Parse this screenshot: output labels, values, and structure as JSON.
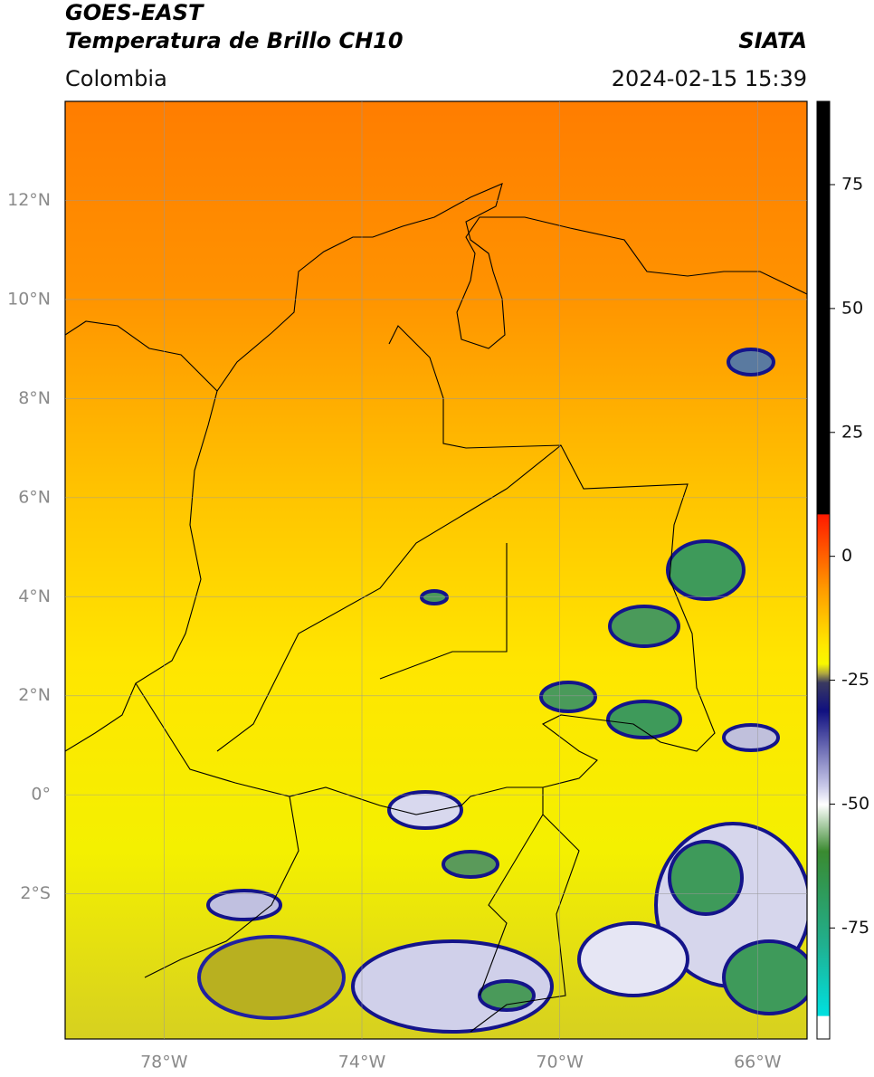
{
  "header": {
    "title": "GOES-EAST",
    "subtitle": "Temperatura de Brillo CH10",
    "source": "SIATA",
    "region": "Colombia",
    "datetime": "2024-02-15 15:39"
  },
  "map": {
    "lon_range": [
      -80,
      -65
    ],
    "lat_range": [
      -4.93,
      14
    ],
    "lat_ticks": [
      {
        "value": 12,
        "label": "12°N"
      },
      {
        "value": 10,
        "label": "10°N"
      },
      {
        "value": 8,
        "label": "8°N"
      },
      {
        "value": 6,
        "label": "6°N"
      },
      {
        "value": 4,
        "label": "4°N"
      },
      {
        "value": 2,
        "label": "2°N"
      },
      {
        "value": 0,
        "label": "0°"
      },
      {
        "value": -2,
        "label": "2°S"
      }
    ],
    "lon_ticks": [
      {
        "value": -78,
        "label": "78°W"
      },
      {
        "value": -74,
        "label": "74°W"
      },
      {
        "value": -70,
        "label": "70°W"
      },
      {
        "value": -66,
        "label": "66°W"
      }
    ],
    "grid": true
  },
  "colorbar": {
    "range": [
      -97.4,
      91.8
    ],
    "ticks": [
      75,
      50,
      25,
      0,
      -25,
      -50,
      -75
    ]
  }
}
